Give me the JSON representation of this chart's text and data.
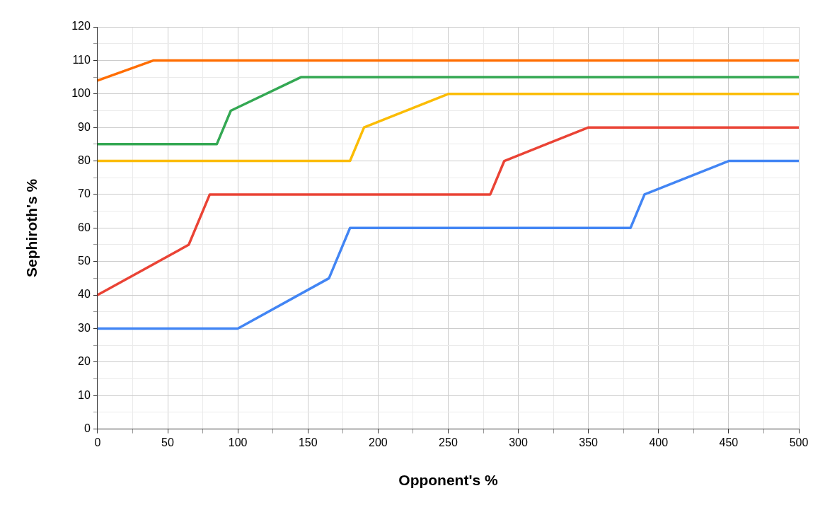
{
  "chart_data": {
    "type": "line",
    "xlabel": "Opponent's %",
    "ylabel": "Sephiroth's %",
    "xlim": [
      0,
      500
    ],
    "ylim": [
      0,
      120
    ],
    "xticks": [
      0,
      {
        "value": 25,
        "label": null
      },
      50,
      {
        "value": 75,
        "label": null
      },
      100,
      {
        "value": 125,
        "label": null
      },
      150,
      {
        "value": 175,
        "label": null
      },
      200,
      {
        "value": 225,
        "label": null
      },
      250,
      {
        "value": 275,
        "label": null
      },
      300,
      {
        "value": 325,
        "label": null
      },
      350,
      {
        "value": 375,
        "label": null
      },
      400,
      {
        "value": 425,
        "label": null
      },
      450,
      {
        "value": 475,
        "label": null
      },
      500
    ],
    "yticks": [
      0,
      {
        "value": 5,
        "label": null
      },
      10,
      {
        "value": 15,
        "label": null
      },
      20,
      {
        "value": 25,
        "label": null
      },
      30,
      {
        "value": 35,
        "label": null
      },
      40,
      {
        "value": 45,
        "label": null
      },
      50,
      {
        "value": 55,
        "label": null
      },
      60,
      {
        "value": 65,
        "label": null
      },
      70,
      {
        "value": 75,
        "label": null
      },
      80,
      {
        "value": 85,
        "label": null
      },
      90,
      {
        "value": 95,
        "label": null
      },
      100,
      {
        "value": 105,
        "label": null
      },
      110,
      {
        "value": 115,
        "label": null
      },
      120
    ],
    "grid": true,
    "marker": "none",
    "line_style": "solid",
    "series": [
      {
        "color": "#4285f4",
        "x": [
          0,
          100,
          165,
          180,
          380,
          390,
          450,
          500
        ],
        "values": [
          30,
          30,
          45,
          60,
          60,
          70,
          80,
          80
        ]
      },
      {
        "color": "#ea4335",
        "x": [
          0,
          65,
          80,
          280,
          290,
          350,
          500
        ],
        "values": [
          40,
          55,
          70,
          70,
          80,
          90,
          90
        ]
      },
      {
        "color": "#fbbc04",
        "x": [
          0,
          180,
          190,
          250,
          500
        ],
        "values": [
          80,
          80,
          90,
          100,
          100
        ]
      },
      {
        "color": "#34a853",
        "x": [
          0,
          85,
          95,
          145,
          500
        ],
        "values": [
          85,
          85,
          95,
          105,
          105
        ]
      },
      {
        "color": "#ff6d01",
        "x": [
          0,
          40,
          500
        ],
        "values": [
          104,
          110,
          110
        ]
      }
    ]
  }
}
